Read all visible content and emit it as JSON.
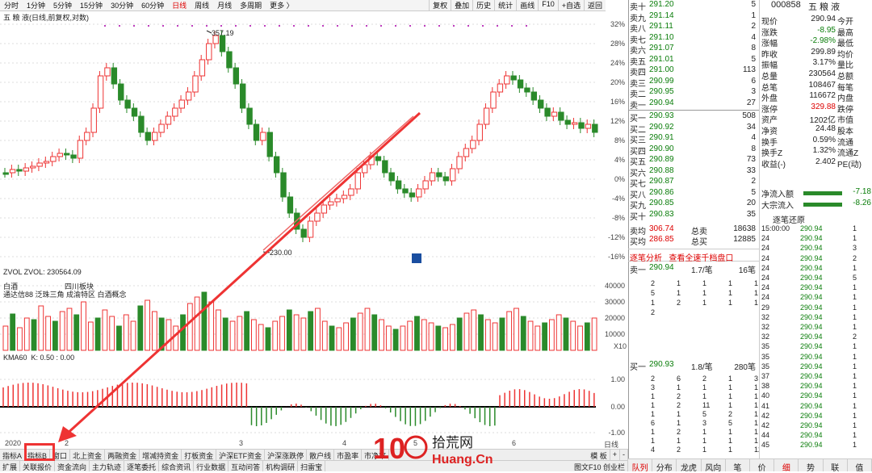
{
  "toolbar": {
    "periods": [
      "分时",
      "1分钟",
      "5分钟",
      "15分钟",
      "30分钟",
      "60分钟",
      "日线",
      "周线",
      "月线",
      "多周期",
      "更多 〉"
    ],
    "active": "日线",
    "right": [
      "复权",
      "叠加",
      "历史",
      "统计",
      "画线",
      "F10",
      "+自选",
      "返回"
    ]
  },
  "chart_title": "五 粮 液(日线,前复权,对数)",
  "main": {
    "high_label": "357.19",
    "low_label": "230.00",
    "y_ticks": [
      "32%",
      "28%",
      "24%",
      "20%",
      "16%",
      "12%",
      "8%",
      "4%",
      "0%",
      "-4%",
      "-8%",
      "-12%",
      "-16%"
    ]
  },
  "vol": {
    "title": "ZVOL  ZVOL: 230564.09",
    "legend1": "白酒",
    "legend2": "四川板块",
    "legend3": "通达信88 泛珠三角 成渝特区 白酒概念",
    "y_ticks": [
      "40000",
      "30000",
      "20000",
      "10000"
    ],
    "unit": "X10"
  },
  "kma": {
    "title": "KMA60",
    "k_label": "K: 0.50 : 0.00",
    "y_ticks": [
      "1.00",
      "0.00",
      "-1.00"
    ]
  },
  "date_axis": [
    "2020",
    "2",
    "3",
    "4",
    "5",
    "6"
  ],
  "date_right": "日线",
  "tabs1": [
    "指标A",
    "指标B",
    "窗口",
    "北上资金",
    "两融资金",
    "增减持资金",
    "打板资金",
    "沪深ETF资金",
    "沪深涨跌停",
    "散户线",
    "市盈率",
    "市净率"
  ],
  "tabs1_right": [
    "模 板",
    "+",
    "-"
  ],
  "tabs2": [
    "扩展",
    "关联报价",
    "资金流向",
    "主力轨迹",
    "逐笔委托",
    "综合资讯",
    "行业数据",
    "互动问答",
    "机构调研",
    "扫雷宝"
  ],
  "tabs2_right": "图文F10 创业栏",
  "stock": {
    "code": "000858",
    "name": "五 粮 液"
  },
  "asks": [
    {
      "l": "卖十",
      "p": "291.20",
      "v": "5"
    },
    {
      "l": "卖九",
      "p": "291.14",
      "v": "1"
    },
    {
      "l": "卖八",
      "p": "291.11",
      "v": "2"
    },
    {
      "l": "卖七",
      "p": "291.10",
      "v": "4"
    },
    {
      "l": "卖六",
      "p": "291.07",
      "v": "8"
    },
    {
      "l": "卖五",
      "p": "291.01",
      "v": "5"
    },
    {
      "l": "卖四",
      "p": "291.00",
      "v": "113"
    },
    {
      "l": "卖三",
      "p": "290.99",
      "v": "6"
    },
    {
      "l": "卖二",
      "p": "290.95",
      "v": "3"
    },
    {
      "l": "卖一",
      "p": "290.94",
      "v": "27"
    }
  ],
  "bids": [
    {
      "l": "买一",
      "p": "290.93",
      "v": "508"
    },
    {
      "l": "买二",
      "p": "290.92",
      "v": "34"
    },
    {
      "l": "买三",
      "p": "290.91",
      "v": "4"
    },
    {
      "l": "买四",
      "p": "290.90",
      "v": "8"
    },
    {
      "l": "买五",
      "p": "290.89",
      "v": "73"
    },
    {
      "l": "买六",
      "p": "290.88",
      "v": "33"
    },
    {
      "l": "买七",
      "p": "290.87",
      "v": "2"
    },
    {
      "l": "买八",
      "p": "290.86",
      "v": "5"
    },
    {
      "l": "买九",
      "p": "290.85",
      "v": "20"
    },
    {
      "l": "买十",
      "p": "290.83",
      "v": "35"
    }
  ],
  "avg": [
    {
      "l": "卖均",
      "p": "306.74",
      "k": "总卖",
      "v": "18638"
    },
    {
      "l": "买均",
      "p": "286.85",
      "k": "总买",
      "v": "12885"
    }
  ],
  "info": [
    {
      "k": "现价",
      "v": "290.94",
      "k2": "今开"
    },
    {
      "k": "涨跌",
      "v": "-8.95",
      "k2": "最高"
    },
    {
      "k": "涨幅",
      "v": "-2.98%",
      "k2": "最低"
    },
    {
      "k": "昨收",
      "v": "299.89",
      "k2": "均价"
    },
    {
      "k": "振幅",
      "v": "3.17%",
      "k2": "量比"
    },
    {
      "k": "总量",
      "v": "230564",
      "k2": "总额"
    },
    {
      "k": "总笔",
      "v": "108467",
      "k2": "每笔"
    },
    {
      "k": "外盘",
      "v": "116672",
      "k2": "内盘"
    },
    {
      "k": "涨停",
      "v": "329.88",
      "k2": "跌停"
    },
    {
      "k": "资产",
      "v": "1202亿",
      "k2": "市值"
    },
    {
      "k": "净资",
      "v": "24.48",
      "k2": "股本"
    },
    {
      "k": "换手",
      "v": "0.59%",
      "k2": "流通"
    },
    {
      "k": "换手Z",
      "v": "1.32%",
      "k2": "流通Z"
    },
    {
      "k": "收益(-)",
      "v": "2.402",
      "k2": "PE(动)"
    }
  ],
  "flow": [
    {
      "k": "净流入额",
      "v": "-7.18"
    },
    {
      "k": "大宗流入",
      "v": "-8.26"
    }
  ],
  "trades_title": "逐笔还原",
  "trades": [
    {
      "t": "15:00:00",
      "p": "290.94",
      "q": "1"
    },
    {
      "t": "24",
      "p": "290.94",
      "q": "1"
    },
    {
      "t": "24",
      "p": "290.94",
      "q": "3"
    },
    {
      "t": "24",
      "p": "290.94",
      "q": "2"
    },
    {
      "t": "24",
      "p": "290.94",
      "q": "1"
    },
    {
      "t": "24",
      "p": "290.94",
      "q": "5"
    },
    {
      "t": "24",
      "p": "290.94",
      "q": "1"
    },
    {
      "t": "24",
      "p": "290.94",
      "q": "1"
    },
    {
      "t": "29",
      "p": "290.94",
      "q": "1"
    },
    {
      "t": "32",
      "p": "290.94",
      "q": "1"
    },
    {
      "t": "32",
      "p": "290.94",
      "q": "1"
    },
    {
      "t": "32",
      "p": "290.94",
      "q": "2"
    },
    {
      "t": "35",
      "p": "290.94",
      "q": "1"
    },
    {
      "t": "35",
      "p": "290.94",
      "q": "1"
    },
    {
      "t": "35",
      "p": "290.94",
      "q": "1"
    },
    {
      "t": "37",
      "p": "290.94",
      "q": "1"
    },
    {
      "t": "38",
      "p": "290.94",
      "q": "1"
    },
    {
      "t": "40",
      "p": "290.94",
      "q": "1"
    },
    {
      "t": "41",
      "p": "290.94",
      "q": "1"
    },
    {
      "t": "42",
      "p": "290.94",
      "q": "1"
    },
    {
      "t": "42",
      "p": "290.94",
      "q": "1"
    },
    {
      "t": "44",
      "p": "290.94",
      "q": "1"
    },
    {
      "t": "45",
      "p": "290.94",
      "q": "1"
    }
  ],
  "analysis": {
    "a": "逐笔分析",
    "b": "查看全速千档盘口"
  },
  "q1": {
    "l": "卖一",
    "p": "290.94",
    "r": "1.7/笔",
    "n": "16笔"
  },
  "q2": {
    "l": "买一",
    "p": "290.93",
    "r": "1.8/笔",
    "n": "280笔"
  },
  "bottom_tabs": [
    "队列",
    "分布",
    "龙虎",
    "风向",
    "笔",
    "价",
    "细",
    "势",
    "联",
    "值"
  ],
  "watermark": {
    "brand": "拾荒网",
    "url": "Huang.Cn"
  }
}
